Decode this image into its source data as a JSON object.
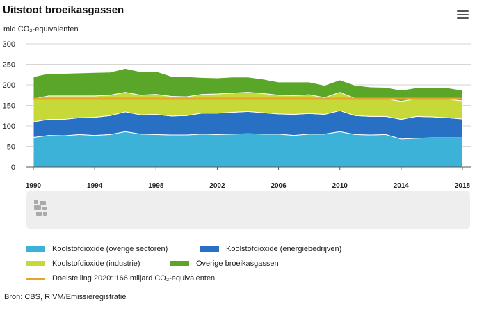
{
  "header": {
    "title": "Uitstoot broeikasgassen",
    "menu_icon": "hamburger-menu-icon"
  },
  "chart_data": {
    "type": "area",
    "stacked": true,
    "unit_label": "mld CO₂-equivalenten",
    "x": [
      1990,
      1991,
      1992,
      1993,
      1994,
      1995,
      1996,
      1997,
      1998,
      1999,
      2000,
      2001,
      2002,
      2003,
      2004,
      2005,
      2006,
      2007,
      2008,
      2009,
      2010,
      2011,
      2012,
      2013,
      2014,
      2015,
      2016,
      2017,
      2018
    ],
    "xticks": [
      "1990",
      "1994",
      "1998",
      "2002",
      "2006",
      "2010",
      "2014",
      "2018"
    ],
    "yticks": [
      "0",
      "50",
      "100",
      "150",
      "200",
      "250",
      "300"
    ],
    "ylim": [
      0,
      300
    ],
    "series": [
      {
        "name": "Koolstofdioxide (overige sectoren)",
        "color": "#3db2d8",
        "values": [
          72,
          77,
          76,
          79,
          77,
          79,
          86,
          80,
          79,
          78,
          78,
          80,
          79,
          80,
          81,
          80,
          80,
          77,
          80,
          80,
          86,
          79,
          78,
          79,
          68,
          70,
          71,
          71,
          71
        ]
      },
      {
        "name": "Koolstofdioxide (energiebedrijven)",
        "color": "#2870c4",
        "values": [
          38,
          39,
          40,
          41,
          44,
          46,
          48,
          47,
          49,
          46,
          47,
          51,
          52,
          53,
          54,
          52,
          49,
          51,
          50,
          48,
          51,
          46,
          45,
          44,
          48,
          53,
          51,
          49,
          46
        ]
      },
      {
        "name": "Koolstofdioxide (industrie)",
        "color": "#c7d839",
        "values": [
          56,
          57,
          57,
          53,
          52,
          50,
          48,
          48,
          49,
          48,
          46,
          46,
          47,
          47,
          47,
          47,
          46,
          46,
          46,
          41,
          45,
          42,
          42,
          43,
          44,
          43,
          44,
          45,
          44
        ]
      },
      {
        "name": "Overige broeikasgassen",
        "color": "#5aa628",
        "values": [
          54,
          55,
          55,
          56,
          57,
          56,
          58,
          57,
          56,
          49,
          49,
          41,
          39,
          39,
          37,
          35,
          32,
          33,
          31,
          30,
          30,
          32,
          30,
          28,
          27,
          27,
          27,
          28,
          26
        ]
      }
    ],
    "target": {
      "name": "Doelstelling 2020: 166 miljard CO₂-equivalenten",
      "value": 166,
      "color": "#e8a42a"
    },
    "grid": true,
    "legend_position": "bottom"
  },
  "source": "Bron: CBS, RIVM/Emissieregistratie"
}
